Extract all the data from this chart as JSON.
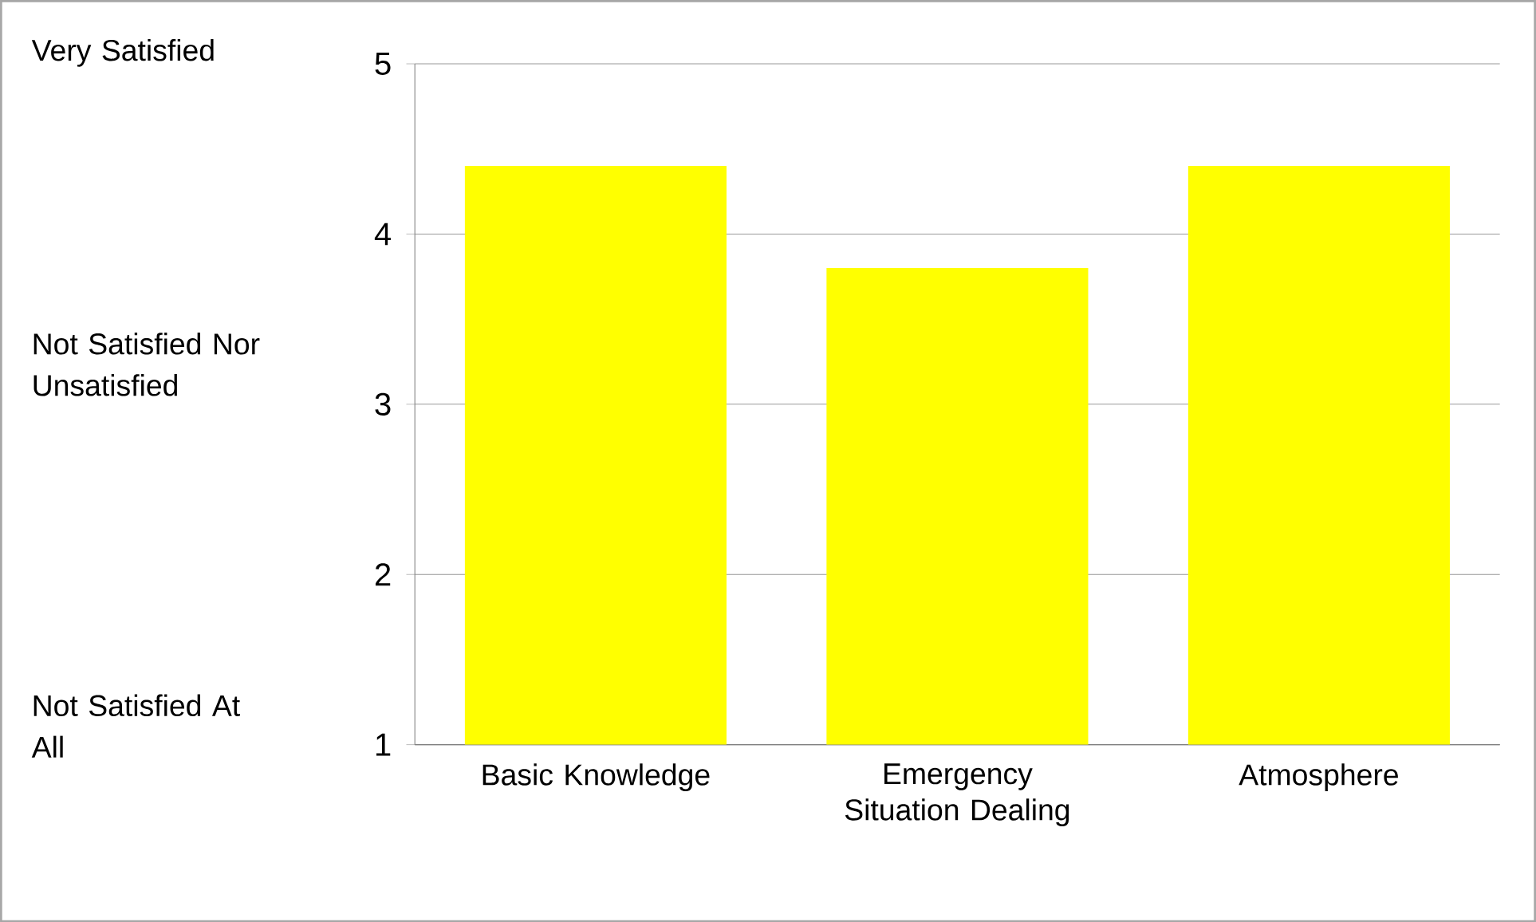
{
  "chart_data": {
    "type": "bar",
    "categories": [
      "Basic Knowledge",
      "Emergency Situation Dealing",
      "Atmosphere"
    ],
    "values": [
      4.4,
      3.8,
      4.4
    ],
    "color": "#ffff00",
    "ylim": [
      1,
      5
    ],
    "yticks": [
      1,
      2,
      3,
      4,
      5
    ],
    "grid": "y",
    "annotations": [
      "Very Satisfied",
      "Not Satisfied Nor Unsatisfied",
      "Not Satisfied At All"
    ]
  }
}
